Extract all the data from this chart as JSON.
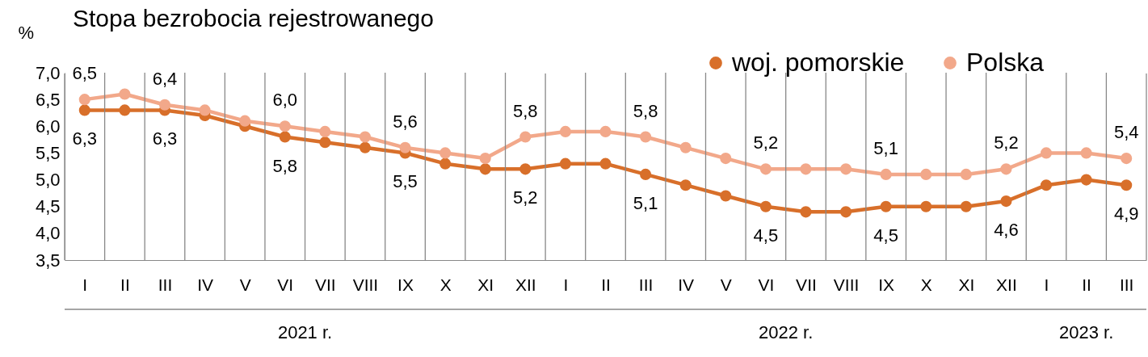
{
  "chart_data": {
    "type": "line",
    "title": "Stopa bezrobocia rejestrowanego",
    "ylabel": "%",
    "categories": [
      "I",
      "II",
      "III",
      "IV",
      "V",
      "VI",
      "VII",
      "VIII",
      "IX",
      "X",
      "XI",
      "XII",
      "I",
      "II",
      "III",
      "IV",
      "V",
      "VI",
      "VII",
      "VIII",
      "IX",
      "X",
      "XI",
      "XII",
      "I",
      "II",
      "III"
    ],
    "annotations": [
      "2021 r.",
      "2022 r.",
      "2023 r."
    ],
    "series": [
      {
        "name": "woj. pomorskie",
        "color": "#d86f2a",
        "values": [
          6.3,
          6.3,
          6.3,
          6.2,
          6.0,
          5.8,
          5.7,
          5.6,
          5.5,
          5.3,
          5.2,
          5.2,
          5.3,
          5.3,
          5.1,
          4.9,
          4.7,
          4.5,
          4.4,
          4.4,
          4.5,
          4.5,
          4.5,
          4.6,
          4.9,
          5.0,
          4.9
        ],
        "value_labels": [
          "6,3",
          null,
          "6,3",
          null,
          null,
          "5,8",
          null,
          null,
          "5,5",
          null,
          null,
          "5,2",
          null,
          null,
          "5,1",
          null,
          null,
          "4,5",
          null,
          null,
          "4,5",
          null,
          null,
          "4,6",
          null,
          null,
          "4,9"
        ]
      },
      {
        "name": "Polska",
        "color": "#f2a88a",
        "values": [
          6.5,
          6.6,
          6.4,
          6.3,
          6.1,
          6.0,
          5.9,
          5.8,
          5.6,
          5.5,
          5.4,
          5.8,
          5.9,
          5.9,
          5.8,
          5.6,
          5.4,
          5.2,
          5.2,
          5.2,
          5.1,
          5.1,
          5.1,
          5.2,
          5.5,
          5.5,
          5.4
        ],
        "value_labels": [
          "6,5",
          null,
          "6,4",
          null,
          null,
          "6,0",
          null,
          null,
          "5,6",
          null,
          null,
          "5,8",
          null,
          null,
          "5,8",
          null,
          null,
          "5,2",
          null,
          null,
          "5,1",
          null,
          null,
          "5,2",
          null,
          null,
          "5,4"
        ]
      }
    ],
    "ylim": [
      3.5,
      7.0
    ],
    "yticks": [
      {
        "value": 3.5,
        "label": "3,5"
      },
      {
        "value": 4.0,
        "label": "4,0"
      },
      {
        "value": 4.5,
        "label": "4,5"
      },
      {
        "value": 5.0,
        "label": "5,0"
      },
      {
        "value": 5.5,
        "label": "5,5"
      },
      {
        "value": 6.0,
        "label": "6,0"
      },
      {
        "value": 6.5,
        "label": "6,5"
      },
      {
        "value": 7.0,
        "label": "7,0"
      }
    ],
    "legend": "top right",
    "marker": "circle",
    "line_style": "solid"
  }
}
